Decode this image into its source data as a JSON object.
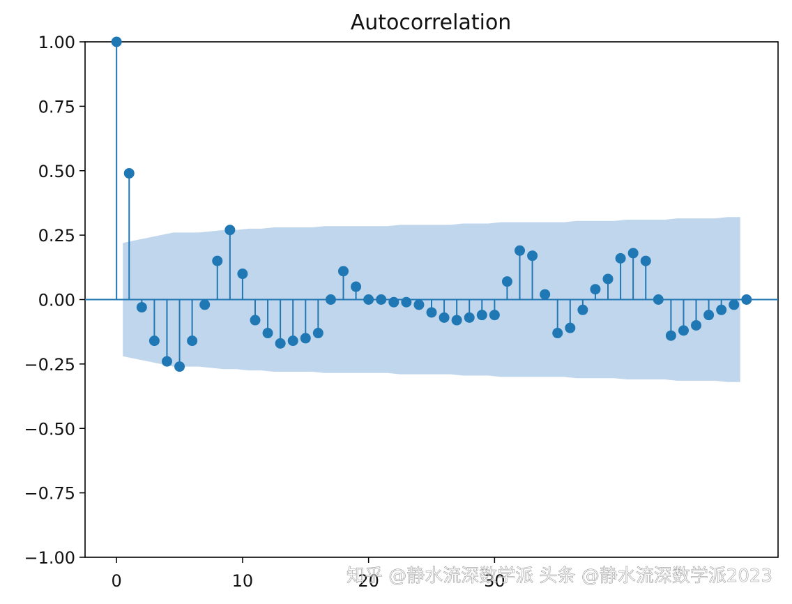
{
  "chart_data": {
    "type": "stem",
    "title": "Autocorrelation",
    "xlabel": "",
    "ylabel": "",
    "xlim": [
      -2.5,
      52.5
    ],
    "ylim": [
      -1.0,
      1.0
    ],
    "x_ticks": [
      0,
      10,
      20,
      30
    ],
    "x_tick_labels": [
      "0",
      "10",
      "20",
      "30"
    ],
    "y_ticks": [
      -1.0,
      -0.75,
      -0.5,
      -0.25,
      0.0,
      0.25,
      0.5,
      0.75,
      1.0
    ],
    "y_tick_labels": [
      "−1.00",
      "−0.75",
      "−0.50",
      "−0.25",
      "0.00",
      "0.25",
      "0.50",
      "0.75",
      "1.00"
    ],
    "grid": false,
    "lags": [
      0,
      1,
      2,
      3,
      4,
      5,
      6,
      7,
      8,
      9,
      10,
      11,
      12,
      13,
      14,
      15,
      16,
      17,
      18,
      19,
      20,
      21,
      22,
      23,
      24,
      25,
      26,
      27,
      28,
      29,
      30,
      31,
      32,
      33,
      34,
      35,
      36,
      37,
      38,
      39,
      40,
      41,
      42,
      43,
      44,
      45,
      46,
      47,
      48,
      49,
      50
    ],
    "values": [
      1.0,
      0.49,
      -0.03,
      -0.16,
      -0.24,
      -0.26,
      -0.16,
      -0.02,
      0.15,
      0.27,
      0.1,
      -0.08,
      -0.13,
      -0.17,
      -0.16,
      -0.15,
      -0.13,
      0.0,
      0.11,
      0.05,
      0.0,
      0.0,
      -0.01,
      -0.01,
      -0.02,
      -0.05,
      -0.07,
      -0.08,
      -0.07,
      -0.06,
      -0.06,
      0.07,
      0.19,
      0.17,
      0.02,
      -0.13,
      -0.11,
      -0.04,
      0.04,
      0.08,
      0.16,
      0.18,
      0.15,
      0.0,
      -0.14,
      -0.12,
      -0.1,
      -0.06,
      -0.04,
      -0.02,
      0.0
    ],
    "confidence_band": [
      0.19,
      0.22,
      0.23,
      0.24,
      0.25,
      0.26,
      0.26,
      0.26,
      0.265,
      0.27,
      0.27,
      0.275,
      0.275,
      0.28,
      0.28,
      0.28,
      0.28,
      0.285,
      0.285,
      0.285,
      0.285,
      0.285,
      0.285,
      0.29,
      0.29,
      0.29,
      0.29,
      0.29,
      0.295,
      0.295,
      0.295,
      0.3,
      0.3,
      0.3,
      0.3,
      0.3,
      0.3,
      0.305,
      0.305,
      0.305,
      0.305,
      0.31,
      0.31,
      0.31,
      0.31,
      0.315,
      0.315,
      0.315,
      0.315,
      0.32,
      0.32
    ],
    "colors": {
      "stem": "#1f77b4",
      "band": "#b9d1ea"
    }
  },
  "watermark": "知乎 @静水流深数学派 头条 @静水流深数学派2023"
}
